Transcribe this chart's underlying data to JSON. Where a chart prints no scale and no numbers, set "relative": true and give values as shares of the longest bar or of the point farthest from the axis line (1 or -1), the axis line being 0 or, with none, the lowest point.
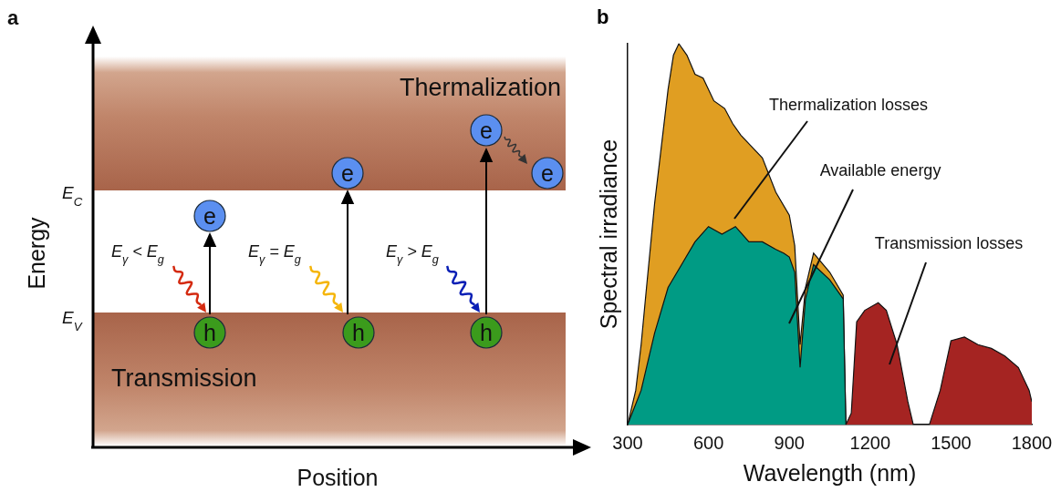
{
  "chart_data": [
    {
      "type": "other",
      "title": "a",
      "xlabel": "Position",
      "ylabel": "Energy",
      "annotations": [
        "Thermalization",
        "Transmission",
        "E$_{C}$",
        "E$_{V}$",
        "E$_{γ}$ < E$_{g}$",
        "E$_{γ}$ = E$_{g}$",
        "E$_{γ}$ > E$_{g}$",
        "e",
        "e",
        "e",
        "e",
        "h",
        "h",
        "h"
      ]
    },
    {
      "type": "area",
      "title": "b",
      "xlabel": "Wavelength (nm)",
      "ylabel": "Spectral irradiance",
      "relative": true,
      "xlim": [
        300,
        1800
      ],
      "xticks": [
        300,
        600,
        900,
        1200,
        1500,
        1800
      ],
      "series": [
        {
          "color": "#e09e22",
          "x": [
            300,
            330,
            350,
            370,
            400,
            430,
            450,
            470,
            490,
            520,
            550,
            580,
            620,
            660,
            690,
            720,
            760,
            800,
            850,
            900,
            920,
            940,
            960,
            990,
            1050,
            1100,
            1110
          ],
          "values": [
            0,
            0.09,
            0.21,
            0.36,
            0.58,
            0.76,
            0.88,
            0.97,
            1.0,
            0.97,
            0.92,
            0.91,
            0.85,
            0.83,
            0.79,
            0.76,
            0.73,
            0.7,
            0.61,
            0.55,
            0.47,
            0.21,
            0.36,
            0.45,
            0.4,
            0.34,
            0
          ]
        },
        {
          "color": "#009b84",
          "x": [
            300,
            350,
            400,
            450,
            500,
            550,
            600,
            650,
            700,
            750,
            800,
            850,
            880,
            900,
            920,
            940,
            960,
            990,
            1050,
            1100,
            1110
          ],
          "values": [
            0,
            0.09,
            0.24,
            0.36,
            0.42,
            0.48,
            0.52,
            0.5,
            0.52,
            0.48,
            0.48,
            0.46,
            0.45,
            0.44,
            0.4,
            0.15,
            0.33,
            0.42,
            0.38,
            0.33,
            0
          ]
        },
        {
          "color": "#a52422",
          "x": [
            1110,
            1130,
            1150,
            1180,
            1230,
            1260,
            1300,
            1340,
            1360,
            1420,
            1460,
            1500,
            1550,
            1600,
            1650,
            1700,
            1750,
            1790,
            1800
          ],
          "values": [
            0,
            0.03,
            0.27,
            0.3,
            0.32,
            0.3,
            0.21,
            0.06,
            0,
            0,
            0.09,
            0.22,
            0.23,
            0.21,
            0.2,
            0.18,
            0.15,
            0.09,
            0.06
          ]
        }
      ],
      "annotations": [
        "Thermalization losses",
        "Available energy",
        "Transmission losses"
      ]
    }
  ]
}
